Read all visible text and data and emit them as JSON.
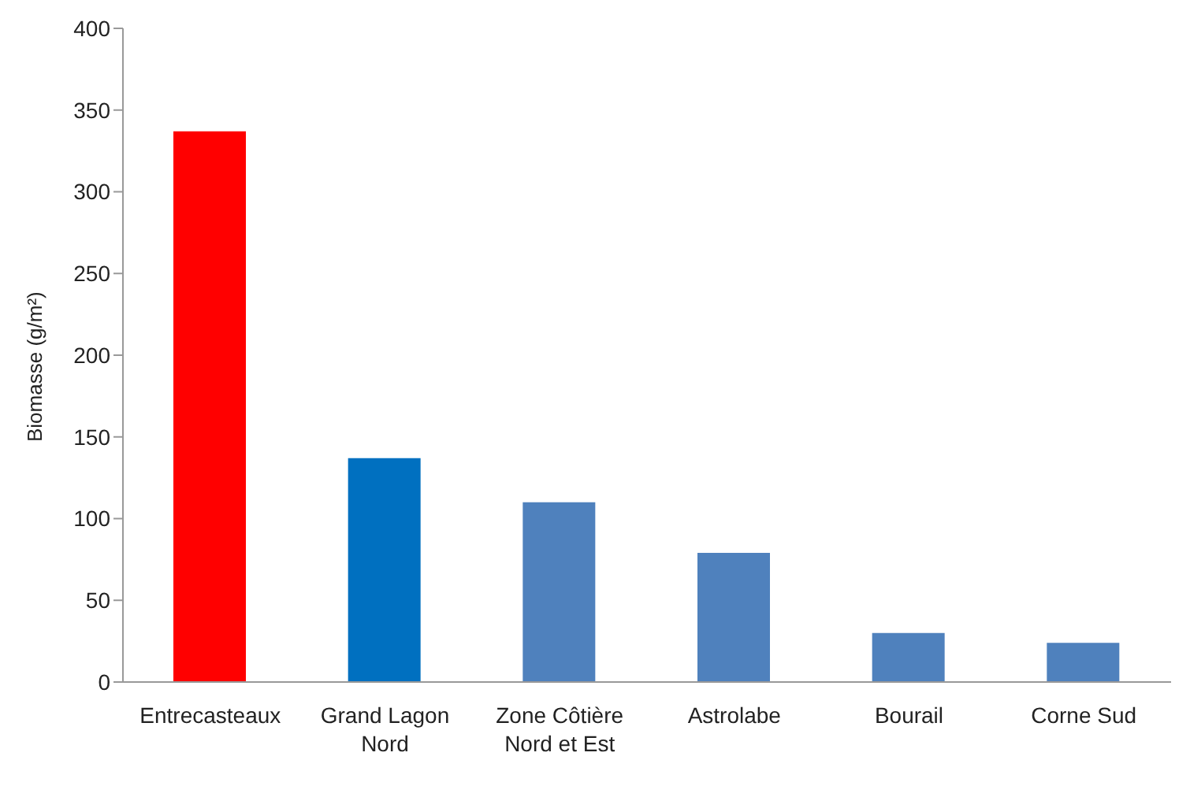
{
  "chart_data": {
    "type": "bar",
    "ylabel": "Biomasse (g/m²)",
    "categories": [
      "Entrecasteaux",
      "Grand Lagon Nord",
      "Zone Côtière Nord et Est",
      "Astrolabe",
      "Bourail",
      "Corne Sud"
    ],
    "values": [
      337,
      137,
      110,
      79,
      30,
      24
    ],
    "colors": [
      "#ff0000",
      "#0070c0",
      "#4f81bd",
      "#4f81bd",
      "#4f81bd",
      "#4f81bd"
    ],
    "ylim": [
      0,
      400
    ],
    "yticks": [
      0,
      50,
      100,
      150,
      200,
      250,
      300,
      350,
      400
    ],
    "grid": false,
    "legend": false
  }
}
